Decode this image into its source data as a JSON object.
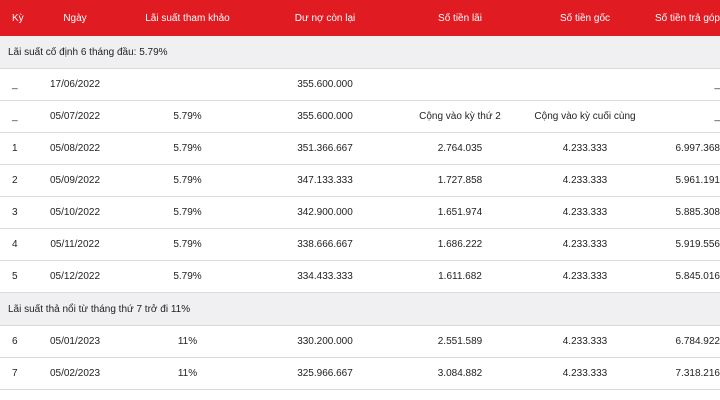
{
  "headers": {
    "ky": "Kỳ",
    "ngay": "Ngày",
    "lai_suat": "Lãi suất tham khảo",
    "du_no": "Dư nợ còn lại",
    "tien_lai": "Số tiền lãi",
    "tien_goc": "Số tiền gốc",
    "tra_gop": "Số tiền trả góp"
  },
  "sections": {
    "fixed": "Lãi suất cố định 6 tháng đầu: 5.79%",
    "floating": "Lãi suất thả nổi từ tháng thứ 7 trở đi 11%"
  },
  "rows_fixed": [
    {
      "ky": "_",
      "ngay": "17/06/2022",
      "lai_suat": "",
      "du_no": "355.600.000",
      "tien_lai": "",
      "tien_goc": "",
      "tra_gop": "_"
    },
    {
      "ky": "_",
      "ngay": "05/07/2022",
      "lai_suat": "5.79%",
      "du_no": "355.600.000",
      "tien_lai": "Cộng vào kỳ thứ 2",
      "tien_goc": "Cộng vào kỳ cuối cùng",
      "tra_gop": "_"
    },
    {
      "ky": "1",
      "ngay": "05/08/2022",
      "lai_suat": "5.79%",
      "du_no": "351.366.667",
      "tien_lai": "2.764.035",
      "tien_goc": "4.233.333",
      "tra_gop": "6.997.368"
    },
    {
      "ky": "2",
      "ngay": "05/09/2022",
      "lai_suat": "5.79%",
      "du_no": "347.133.333",
      "tien_lai": "1.727.858",
      "tien_goc": "4.233.333",
      "tra_gop": "5.961.191"
    },
    {
      "ky": "3",
      "ngay": "05/10/2022",
      "lai_suat": "5.79%",
      "du_no": "342.900.000",
      "tien_lai": "1.651.974",
      "tien_goc": "4.233.333",
      "tra_gop": "5.885.308"
    },
    {
      "ky": "4",
      "ngay": "05/11/2022",
      "lai_suat": "5.79%",
      "du_no": "338.666.667",
      "tien_lai": "1.686.222",
      "tien_goc": "4.233.333",
      "tra_gop": "5.919.556"
    },
    {
      "ky": "5",
      "ngay": "05/12/2022",
      "lai_suat": "5.79%",
      "du_no": "334.433.333",
      "tien_lai": "1.611.682",
      "tien_goc": "4.233.333",
      "tra_gop": "5.845.016"
    }
  ],
  "rows_floating": [
    {
      "ky": "6",
      "ngay": "05/01/2023",
      "lai_suat": "11%",
      "du_no": "330.200.000",
      "tien_lai": "2.551.589",
      "tien_goc": "4.233.333",
      "tra_gop": "6.784.922"
    },
    {
      "ky": "7",
      "ngay": "05/02/2023",
      "lai_suat": "11%",
      "du_no": "325.966.667",
      "tien_lai": "3.084.882",
      "tien_goc": "4.233.333",
      "tra_gop": "7.318.216"
    }
  ],
  "colors": {
    "header_bg": "#e11b22",
    "section_bg": "#f0f0f2"
  }
}
